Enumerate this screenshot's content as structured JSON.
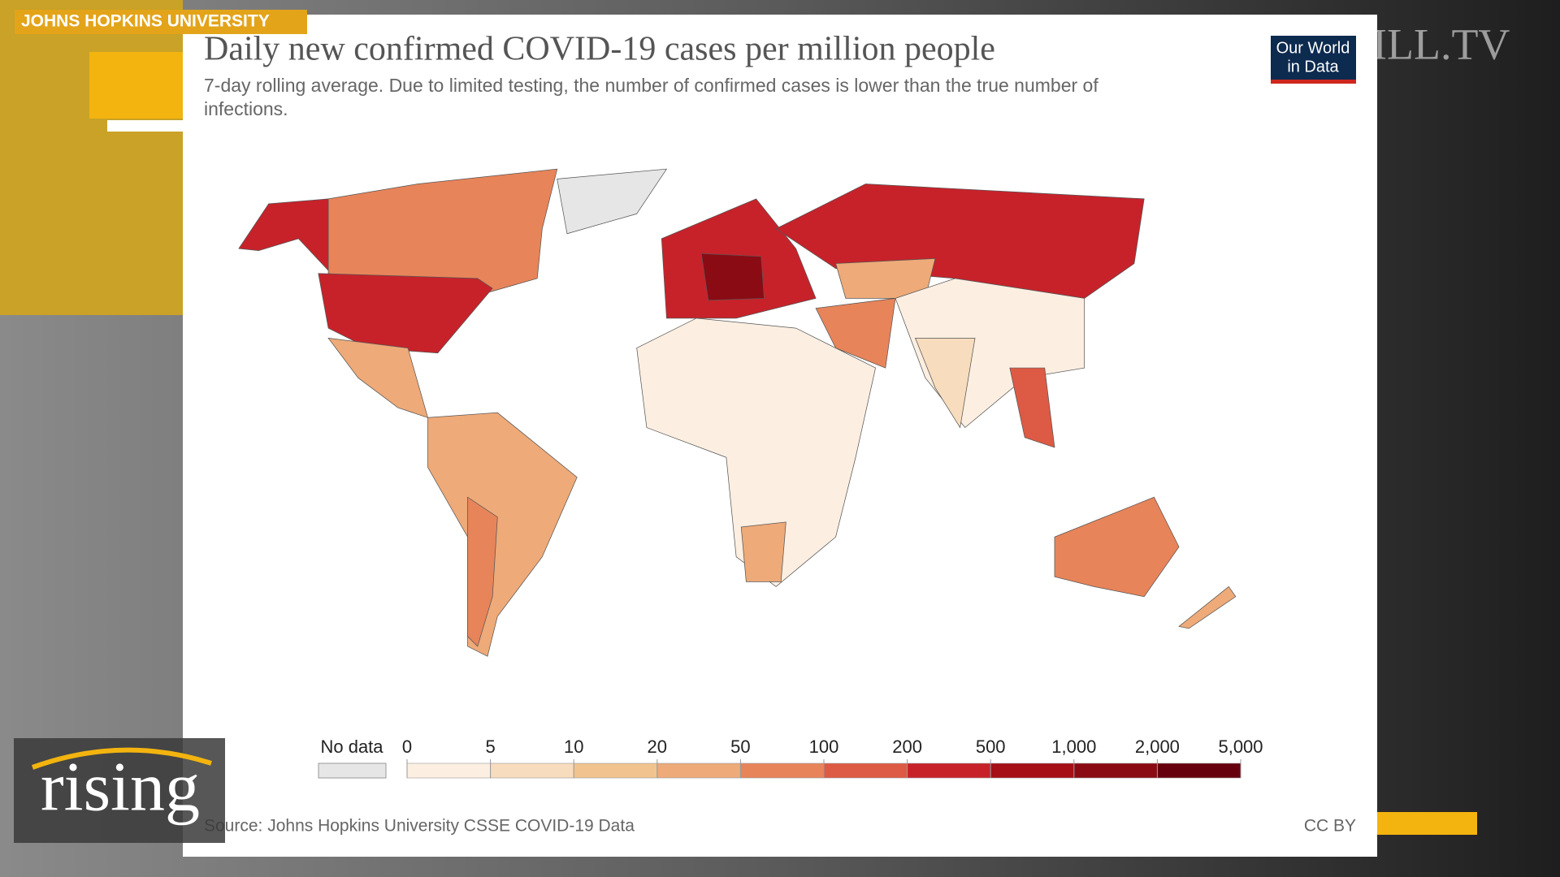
{
  "broadcast": {
    "tag": "JOHNS HOPKINS UNIVERSITY",
    "watermark": "HILL.TV",
    "show_logo": "rising"
  },
  "chart": {
    "title": "Daily new confirmed COVID-19 cases per million people",
    "subtitle_lines": [
      "7-day rolling average. Due to limited testing, the number of confirmed cases is lower than the true number of",
      "infections."
    ],
    "logo_lines": [
      "Our World",
      "in Data"
    ],
    "legend": {
      "no_data_label": "No data",
      "no_data_color": "#e6e6e6",
      "ticks": [
        0,
        5,
        10,
        20,
        50,
        100,
        200,
        500,
        {
          "value": 1000,
          "label": "1,000"
        },
        {
          "value": 2000,
          "label": "2,000"
        },
        {
          "value": 5000,
          "label": "5,000"
        }
      ],
      "colors": [
        "#fcefe2",
        "#f7dcbd",
        "#f1c48f",
        "#eeaa78",
        "#e8845a",
        "#dd5a44",
        "#c7222a",
        "#a50f15",
        "#8a0b14",
        "#67000d"
      ]
    },
    "source": "Source: Johns Hopkins University CSSE COVID-19 Data",
    "license": "CC BY"
  }
}
